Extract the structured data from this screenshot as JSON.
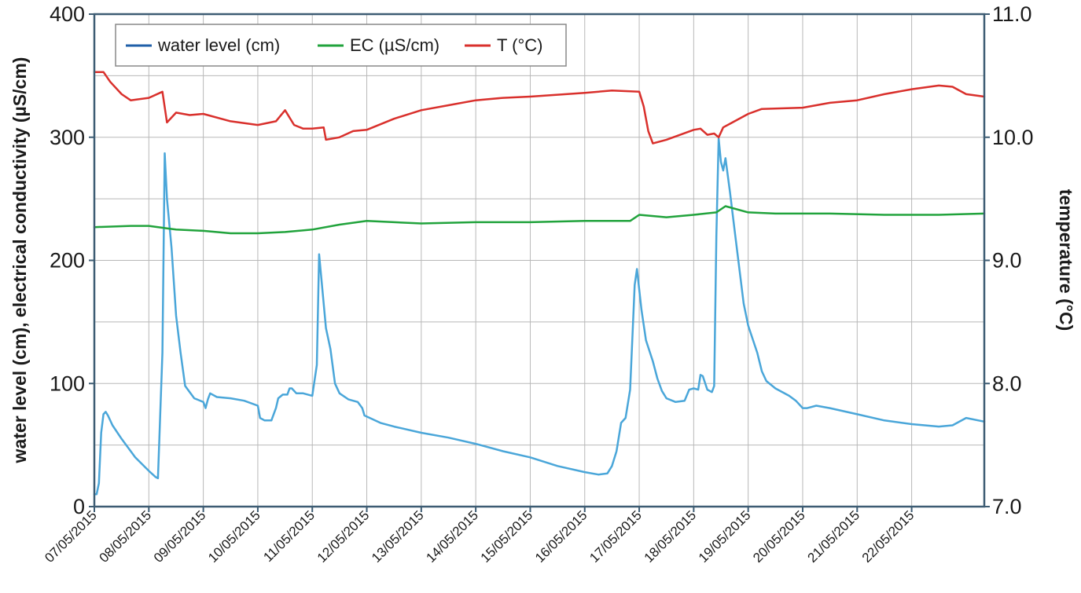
{
  "chart_data": {
    "type": "line",
    "ylabel": "water level (cm),  electrical conductivity (µS/cm)",
    "y2label": "temperature  (°C)",
    "ylim": [
      0,
      400
    ],
    "y2lim": [
      7.0,
      11.0
    ],
    "xlim": [
      "07/05/2015 00:00",
      "23/05/2015 08:00"
    ],
    "yticks": [
      "0",
      "100",
      "200",
      "300",
      "400"
    ],
    "y2ticks": [
      "7.0",
      "8.0",
      "9.0",
      "10.0",
      "11.0"
    ],
    "xticks": [
      "07/05/2015",
      "08/05/2015",
      "09/05/2015",
      "10/05/2015",
      "11/05/2015",
      "12/05/2015",
      "13/05/2015",
      "14/05/2015",
      "15/05/2015",
      "16/05/2015",
      "17/05/2015",
      "18/05/2015",
      "19/05/2015",
      "20/05/2015",
      "21/05/2015",
      "22/05/2015"
    ],
    "grid": true,
    "legend_position": "top-left",
    "series": [
      {
        "name": "water level (cm)",
        "axis": "left",
        "color": "#4aa6d9",
        "legend_color": "#1f5fa8",
        "points": [
          [
            "07/05/2015 00:00",
            10
          ],
          [
            "07/05/2015 01:00",
            10
          ],
          [
            "07/05/2015 02:00",
            19
          ],
          [
            "07/05/2015 03:00",
            60
          ],
          [
            "07/05/2015 04:00",
            75
          ],
          [
            "07/05/2015 05:00",
            77
          ],
          [
            "07/05/2015 06:00",
            74
          ],
          [
            "07/05/2015 08:00",
            66
          ],
          [
            "07/05/2015 12:00",
            55
          ],
          [
            "07/05/2015 18:00",
            40
          ],
          [
            "08/05/2015 00:00",
            29
          ],
          [
            "08/05/2015 03:00",
            24
          ],
          [
            "08/05/2015 04:00",
            23
          ],
          [
            "08/05/2015 06:00",
            125
          ],
          [
            "08/05/2015 07:00",
            287
          ],
          [
            "08/05/2015 08:00",
            250
          ],
          [
            "08/05/2015 10:00",
            210
          ],
          [
            "08/05/2015 12:00",
            155
          ],
          [
            "08/05/2015 14:00",
            125
          ],
          [
            "08/05/2015 16:00",
            98
          ],
          [
            "08/05/2015 20:00",
            88
          ],
          [
            "09/05/2015 00:00",
            85
          ],
          [
            "09/05/2015 01:00",
            80
          ],
          [
            "09/05/2015 02:00",
            87
          ],
          [
            "09/05/2015 03:00",
            92
          ],
          [
            "09/05/2015 06:00",
            89
          ],
          [
            "09/05/2015 12:00",
            88
          ],
          [
            "09/05/2015 18:00",
            86
          ],
          [
            "10/05/2015 00:00",
            82
          ],
          [
            "10/05/2015 01:00",
            72
          ],
          [
            "10/05/2015 03:00",
            70
          ],
          [
            "10/05/2015 06:00",
            70
          ],
          [
            "10/05/2015 08:00",
            80
          ],
          [
            "10/05/2015 09:00",
            88
          ],
          [
            "10/05/2015 11:00",
            91
          ],
          [
            "10/05/2015 13:00",
            91
          ],
          [
            "10/05/2015 14:00",
            96
          ],
          [
            "10/05/2015 15:00",
            96
          ],
          [
            "10/05/2015 17:00",
            92
          ],
          [
            "10/05/2015 20:00",
            92
          ],
          [
            "11/05/2015 00:00",
            90
          ],
          [
            "11/05/2015 02:00",
            115
          ],
          [
            "11/05/2015 03:00",
            205
          ],
          [
            "11/05/2015 04:00",
            185
          ],
          [
            "11/05/2015 06:00",
            145
          ],
          [
            "11/05/2015 08:00",
            128
          ],
          [
            "11/05/2015 10:00",
            100
          ],
          [
            "11/05/2015 12:00",
            92
          ],
          [
            "11/05/2015 16:00",
            87
          ],
          [
            "11/05/2015 20:00",
            85
          ],
          [
            "11/05/2015 22:00",
            80
          ],
          [
            "11/05/2015 23:00",
            74
          ],
          [
            "12/05/2015 06:00",
            68
          ],
          [
            "12/05/2015 12:00",
            65
          ],
          [
            "13/05/2015 00:00",
            60
          ],
          [
            "13/05/2015 12:00",
            56
          ],
          [
            "14/05/2015 00:00",
            51
          ],
          [
            "14/05/2015 12:00",
            45
          ],
          [
            "15/05/2015 00:00",
            40
          ],
          [
            "15/05/2015 12:00",
            33
          ],
          [
            "16/05/2015 00:00",
            28
          ],
          [
            "16/05/2015 06:00",
            26
          ],
          [
            "16/05/2015 10:00",
            27
          ],
          [
            "16/05/2015 12:00",
            33
          ],
          [
            "16/05/2015 14:00",
            45
          ],
          [
            "16/05/2015 16:00",
            68
          ],
          [
            "16/05/2015 18:00",
            72
          ],
          [
            "16/05/2015 20:00",
            95
          ],
          [
            "16/05/2015 22:00",
            180
          ],
          [
            "16/05/2015 23:00",
            193
          ],
          [
            "17/05/2015 01:00",
            160
          ],
          [
            "17/05/2015 03:00",
            135
          ],
          [
            "17/05/2015 06:00",
            118
          ],
          [
            "17/05/2015 08:00",
            104
          ],
          [
            "17/05/2015 10:00",
            94
          ],
          [
            "17/05/2015 12:00",
            88
          ],
          [
            "17/05/2015 16:00",
            85
          ],
          [
            "17/05/2015 20:00",
            86
          ],
          [
            "17/05/2015 22:00",
            95
          ],
          [
            "18/05/2015 00:00",
            96
          ],
          [
            "18/05/2015 02:00",
            95
          ],
          [
            "18/05/2015 03:00",
            107
          ],
          [
            "18/05/2015 04:00",
            106
          ],
          [
            "18/05/2015 06:00",
            95
          ],
          [
            "18/05/2015 08:00",
            93
          ],
          [
            "18/05/2015 09:00",
            98
          ],
          [
            "18/05/2015 10:00",
            220
          ],
          [
            "18/05/2015 11:00",
            299
          ],
          [
            "18/05/2015 12:00",
            280
          ],
          [
            "18/05/2015 13:00",
            273
          ],
          [
            "18/05/2015 14:00",
            283
          ],
          [
            "18/05/2015 16:00",
            255
          ],
          [
            "18/05/2015 18:00",
            225
          ],
          [
            "18/05/2015 20:00",
            195
          ],
          [
            "18/05/2015 22:00",
            165
          ],
          [
            "19/05/2015 00:00",
            147
          ],
          [
            "19/05/2015 04:00",
            125
          ],
          [
            "19/05/2015 06:00",
            110
          ],
          [
            "19/05/2015 08:00",
            102
          ],
          [
            "19/05/2015 12:00",
            96
          ],
          [
            "19/05/2015 18:00",
            90
          ],
          [
            "19/05/2015 21:00",
            86
          ],
          [
            "20/05/2015 00:00",
            80
          ],
          [
            "20/05/2015 02:00",
            80
          ],
          [
            "20/05/2015 06:00",
            82
          ],
          [
            "20/05/2015 12:00",
            80
          ],
          [
            "21/05/2015 00:00",
            75
          ],
          [
            "21/05/2015 12:00",
            70
          ],
          [
            "22/05/2015 00:00",
            67
          ],
          [
            "22/05/2015 12:00",
            65
          ],
          [
            "22/05/2015 18:00",
            66
          ],
          [
            "23/05/2015 00:00",
            72
          ],
          [
            "23/05/2015 08:00",
            69
          ]
        ]
      },
      {
        "name": "EC (µS/cm)",
        "axis": "left",
        "color": "#21a33c",
        "points": [
          [
            "07/05/2015 00:00",
            227
          ],
          [
            "07/05/2015 16:00",
            228
          ],
          [
            "08/05/2015 00:00",
            228
          ],
          [
            "08/05/2015 08:00",
            226
          ],
          [
            "08/05/2015 12:00",
            225
          ],
          [
            "09/05/2015 00:00",
            224
          ],
          [
            "09/05/2015 12:00",
            222
          ],
          [
            "10/05/2015 00:00",
            222
          ],
          [
            "10/05/2015 12:00",
            223
          ],
          [
            "11/05/2015 00:00",
            225
          ],
          [
            "11/05/2015 12:00",
            229
          ],
          [
            "12/05/2015 00:00",
            232
          ],
          [
            "12/05/2015 12:00",
            231
          ],
          [
            "13/05/2015 00:00",
            230
          ],
          [
            "14/05/2015 00:00",
            231
          ],
          [
            "15/05/2015 00:00",
            231
          ],
          [
            "16/05/2015 00:00",
            232
          ],
          [
            "16/05/2015 20:00",
            232
          ],
          [
            "17/05/2015 00:00",
            237
          ],
          [
            "17/05/2015 12:00",
            235
          ],
          [
            "18/05/2015 00:00",
            237
          ],
          [
            "18/05/2015 10:00",
            239
          ],
          [
            "18/05/2015 14:00",
            244
          ],
          [
            "19/05/2015 00:00",
            239
          ],
          [
            "19/05/2015 12:00",
            238
          ],
          [
            "20/05/2015 12:00",
            238
          ],
          [
            "21/05/2015 12:00",
            237
          ],
          [
            "22/05/2015 12:00",
            237
          ],
          [
            "23/05/2015 08:00",
            238
          ]
        ]
      },
      {
        "name": "T (°C)",
        "axis": "right",
        "color": "#d9302c",
        "points": [
          [
            "07/05/2015 00:00",
            10.53
          ],
          [
            "07/05/2015 04:00",
            10.53
          ],
          [
            "07/05/2015 07:00",
            10.45
          ],
          [
            "07/05/2015 12:00",
            10.35
          ],
          [
            "07/05/2015 16:00",
            10.3
          ],
          [
            "08/05/2015 00:00",
            10.32
          ],
          [
            "08/05/2015 06:00",
            10.37
          ],
          [
            "08/05/2015 08:00",
            10.12
          ],
          [
            "08/05/2015 12:00",
            10.2
          ],
          [
            "08/05/2015 18:00",
            10.18
          ],
          [
            "09/05/2015 00:00",
            10.19
          ],
          [
            "09/05/2015 12:00",
            10.13
          ],
          [
            "10/05/2015 00:00",
            10.1
          ],
          [
            "10/05/2015 08:00",
            10.13
          ],
          [
            "10/05/2015 12:00",
            10.22
          ],
          [
            "10/05/2015 16:00",
            10.1
          ],
          [
            "10/05/2015 20:00",
            10.07
          ],
          [
            "11/05/2015 00:00",
            10.07
          ],
          [
            "11/05/2015 05:00",
            10.08
          ],
          [
            "11/05/2015 06:00",
            9.98
          ],
          [
            "11/05/2015 12:00",
            10.0
          ],
          [
            "11/05/2015 18:00",
            10.05
          ],
          [
            "12/05/2015 00:00",
            10.06
          ],
          [
            "12/05/2015 12:00",
            10.15
          ],
          [
            "13/05/2015 00:00",
            10.22
          ],
          [
            "13/05/2015 12:00",
            10.26
          ],
          [
            "14/05/2015 00:00",
            10.3
          ],
          [
            "14/05/2015 12:00",
            10.32
          ],
          [
            "15/05/2015 00:00",
            10.33
          ],
          [
            "16/05/2015 00:00",
            10.36
          ],
          [
            "16/05/2015 12:00",
            10.38
          ],
          [
            "17/05/2015 00:00",
            10.37
          ],
          [
            "17/05/2015 02:00",
            10.25
          ],
          [
            "17/05/2015 04:00",
            10.05
          ],
          [
            "17/05/2015 06:00",
            9.95
          ],
          [
            "17/05/2015 12:00",
            9.98
          ],
          [
            "18/05/2015 00:00",
            10.06
          ],
          [
            "18/05/2015 03:00",
            10.07
          ],
          [
            "18/05/2015 06:00",
            10.02
          ],
          [
            "18/05/2015 09:00",
            10.03
          ],
          [
            "18/05/2015 11:00",
            10.0
          ],
          [
            "18/05/2015 13:00",
            10.08
          ],
          [
            "18/05/2015 16:00",
            10.11
          ],
          [
            "19/05/2015 00:00",
            10.19
          ],
          [
            "19/05/2015 06:00",
            10.23
          ],
          [
            "20/05/2015 00:00",
            10.24
          ],
          [
            "20/05/2015 12:00",
            10.28
          ],
          [
            "21/05/2015 00:00",
            10.3
          ],
          [
            "21/05/2015 12:00",
            10.35
          ],
          [
            "22/05/2015 00:00",
            10.39
          ],
          [
            "22/05/2015 12:00",
            10.42
          ],
          [
            "22/05/2015 18:00",
            10.41
          ],
          [
            "23/05/2015 00:00",
            10.35
          ],
          [
            "23/05/2015 08:00",
            10.33
          ]
        ]
      }
    ]
  },
  "colors": {
    "axis_frame": "#3d5c73",
    "grid": "#b8b8b8"
  }
}
